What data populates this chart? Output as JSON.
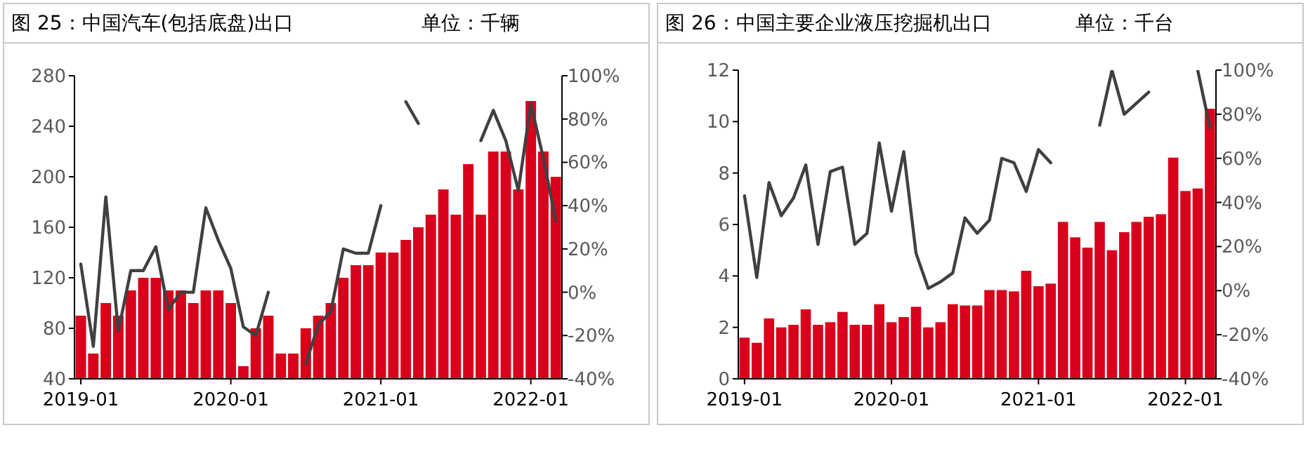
{
  "chart_data": [
    {
      "type": "bar",
      "title": "图 25：中国汽车(包括底盘)出口",
      "subtitle": "单位：千辆",
      "x": [
        "2019-01",
        "2019-02",
        "2019-03",
        "2019-04",
        "2019-05",
        "2019-06",
        "2019-07",
        "2019-08",
        "2019-09",
        "2019-10",
        "2019-11",
        "2019-12",
        "2020-01",
        "2020-02",
        "2020-03",
        "2020-04",
        "2020-05",
        "2020-06",
        "2020-07",
        "2020-08",
        "2020-09",
        "2020-10",
        "2020-11",
        "2020-12",
        "2021-01",
        "2021-02",
        "2021-03",
        "2021-04",
        "2021-05",
        "2021-06",
        "2021-07",
        "2021-08",
        "2021-09",
        "2021-10",
        "2021-11",
        "2021-12",
        "2022-01",
        "2022-02",
        "2022-03"
      ],
      "series": [
        {
          "color": "#d9001b",
          "values": [
            90,
            60,
            100,
            90,
            110,
            120,
            120,
            110,
            110,
            100,
            110,
            110,
            100,
            50,
            80,
            90,
            60,
            60,
            80,
            90,
            100,
            120,
            130,
            130,
            140,
            140,
            150,
            160,
            170,
            190,
            170,
            210,
            170,
            220,
            220,
            190,
            260,
            220,
            200
          ]
        },
        {
          "type": "line",
          "axis": "y2",
          "color": "#404040",
          "values": [
            13,
            -25,
            44,
            -18,
            10,
            10,
            21,
            -8,
            0,
            0,
            39,
            24,
            11,
            -16,
            -20,
            0,
            null,
            null,
            -33,
            -15,
            -9,
            20,
            18,
            18,
            40,
            null,
            88,
            78,
            null,
            null,
            null,
            null,
            70,
            84,
            70,
            47,
            87,
            62,
            33
          ]
        }
      ],
      "xlim": [
        "2018-12-16",
        "2022-03-16"
      ],
      "xticks": [
        "2019-01",
        "2020-01",
        "2021-01",
        "2022-01"
      ],
      "ylim": [
        40,
        280
      ],
      "yticks": [
        40,
        80,
        120,
        160,
        200,
        240,
        280
      ],
      "y2lim": [
        -40,
        100
      ],
      "y2ticks": [
        {
          "value": -40,
          "label": "-40%"
        },
        {
          "value": -20,
          "label": "-20%"
        },
        {
          "value": 0,
          "label": "0%"
        },
        {
          "value": 20,
          "label": "20%"
        },
        {
          "value": 40,
          "label": "40%"
        },
        {
          "value": 60,
          "label": "60%"
        },
        {
          "value": 80,
          "label": "80%"
        },
        {
          "value": 100,
          "label": "100%"
        }
      ]
    },
    {
      "type": "bar",
      "title": "图 26：中国主要企业液压挖掘机出口",
      "subtitle": "单位：千台",
      "x": [
        "2019-01",
        "2019-02",
        "2019-03",
        "2019-04",
        "2019-05",
        "2019-06",
        "2019-07",
        "2019-08",
        "2019-09",
        "2019-10",
        "2019-11",
        "2019-12",
        "2020-01",
        "2020-02",
        "2020-03",
        "2020-04",
        "2020-05",
        "2020-06",
        "2020-07",
        "2020-08",
        "2020-09",
        "2020-10",
        "2020-11",
        "2020-12",
        "2021-01",
        "2021-02",
        "2021-03",
        "2021-04",
        "2021-05",
        "2021-06",
        "2021-07",
        "2021-08",
        "2021-09",
        "2021-10",
        "2021-11",
        "2021-12",
        "2022-01",
        "2022-02",
        "2022-03"
      ],
      "series": [
        {
          "color": "#d9001b",
          "values": [
            1.6,
            1.4,
            2.35,
            2.0,
            2.1,
            2.7,
            2.1,
            2.2,
            2.6,
            2.1,
            2.1,
            2.9,
            2.2,
            2.4,
            2.8,
            2.0,
            2.2,
            2.9,
            2.85,
            2.85,
            3.45,
            3.45,
            3.4,
            4.2,
            3.6,
            3.7,
            6.1,
            5.5,
            5.1,
            6.1,
            5.0,
            5.7,
            6.1,
            6.3,
            6.4,
            8.6,
            7.3,
            7.4,
            10.5
          ]
        },
        {
          "type": "line",
          "axis": "y2",
          "color": "#404040",
          "values": [
            43,
            6,
            49,
            34,
            42,
            57,
            21,
            54,
            56,
            21,
            26,
            67,
            36,
            63,
            17,
            1,
            4,
            8,
            33,
            26,
            32,
            60,
            58,
            45,
            64,
            58,
            null,
            null,
            null,
            75,
            100,
            80,
            85,
            90,
            null,
            null,
            null,
            100,
            74
          ]
        }
      ],
      "xlim": [
        "2018-12-16",
        "2022-03-16"
      ],
      "xticks": [
        "2019-01",
        "2020-01",
        "2021-01",
        "2022-01"
      ],
      "ylim": [
        0,
        12
      ],
      "yticks": [
        0,
        2,
        4,
        6,
        8,
        10,
        12
      ],
      "y2lim": [
        -40,
        100
      ],
      "y2ticks": [
        {
          "value": -40,
          "label": "-40%"
        },
        {
          "value": -20,
          "label": "-20%"
        },
        {
          "value": 0,
          "label": "0%"
        },
        {
          "value": 20,
          "label": "20%"
        },
        {
          "value": 40,
          "label": "40%"
        },
        {
          "value": 60,
          "label": "60%"
        },
        {
          "value": 80,
          "label": "80%"
        },
        {
          "value": 100,
          "label": "100%"
        }
      ]
    }
  ]
}
